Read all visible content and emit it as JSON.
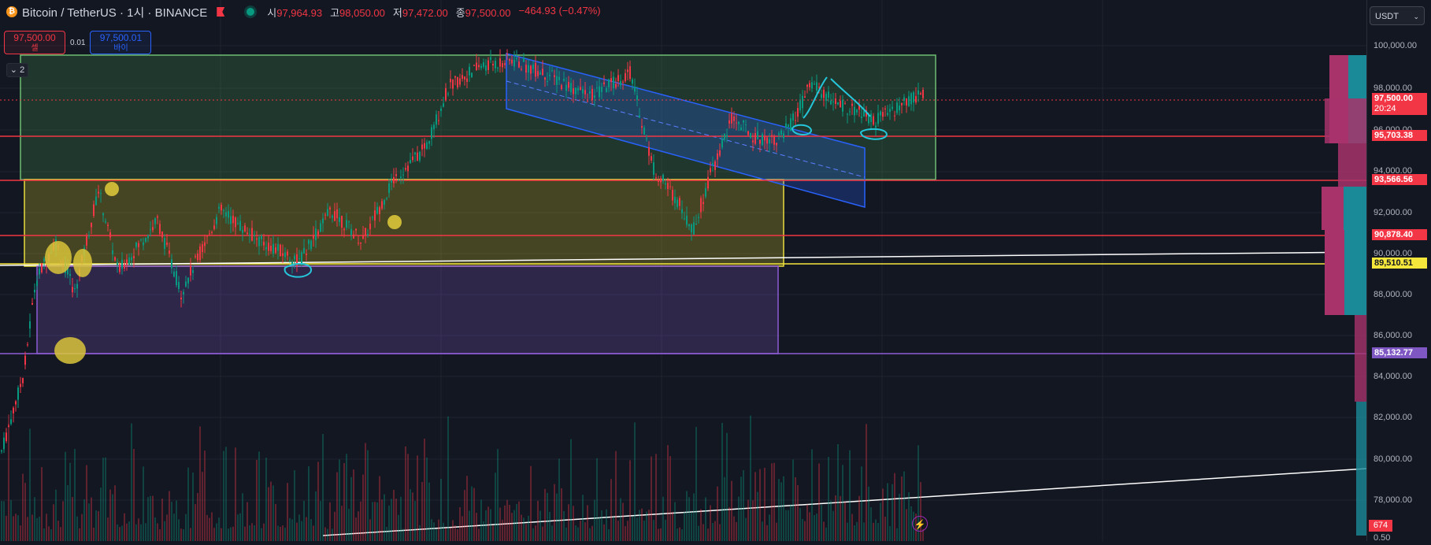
{
  "header": {
    "symbol_icon": "bitcoin-icon",
    "title": "Bitcoin / TetherUS · 1시 · BINANCE",
    "ohlc": {
      "open_label": "시",
      "open": "97,964.93",
      "high_label": "고",
      "high": "98,050.00",
      "low_label": "저",
      "low": "97,472.00",
      "close_label": "종",
      "close": "97,500.00",
      "change": "−464.93 (−0.47%)"
    }
  },
  "trade": {
    "sell_price": "97,500.00",
    "sell_label": "셀",
    "spread": "0.01",
    "buy_price": "97,500.01",
    "buy_label": "바이"
  },
  "indicators_toggle": "2",
  "currency": "USDT",
  "price_axis": {
    "ticks": [
      "100,000.00",
      "98,000.00",
      "96,000.00",
      "94,000.00",
      "92,000.00",
      "90,000.00",
      "88,000.00",
      "86,000.00",
      "84,000.00",
      "82,000.00",
      "80,000.00",
      "78,000.00",
      "0.50"
    ],
    "current_price": "97,500.00",
    "countdown": "20:24",
    "labels": [
      {
        "text": "95,703.38",
        "color": "#f23645"
      },
      {
        "text": "93,566.56",
        "color": "#f23645"
      },
      {
        "text": "90,878.40",
        "color": "#f23645"
      },
      {
        "text": "89,510.51",
        "color": "#f5e63c"
      },
      {
        "text": "85,132.77",
        "color": "#7e57c2"
      }
    ],
    "volume": "674"
  },
  "colors": {
    "up": "#089981",
    "down": "#f23645",
    "background": "#131722"
  }
}
